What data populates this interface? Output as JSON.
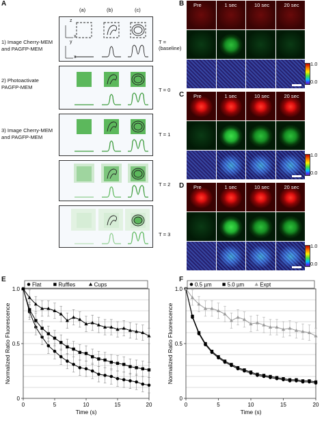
{
  "panels": {
    "A": "A",
    "B": "B",
    "C": "C",
    "D": "D",
    "E": "E",
    "F": "F"
  },
  "schematic": {
    "columns": [
      "(a)",
      "(b)",
      "(c)"
    ],
    "axes": {
      "z": "z",
      "x": "x",
      "y": "y"
    },
    "steps": [
      {
        "label": "1) Image Cherry-MEM\nand PAGFP-MEM",
        "time": "T =\n(baseline)"
      },
      {
        "label": "2) Photoactivate\nPAGFP-MEM",
        "time": "T = 0"
      },
      {
        "label": "3) Image Cherry-MEM\nand PAGFP-MEM",
        "time": "T = 1"
      },
      {
        "label": "",
        "time": "T = 2"
      },
      {
        "label": "",
        "time": "T = 3"
      }
    ]
  },
  "microscopy": {
    "time_labels": [
      "Pre",
      "1 sec",
      "10 sec",
      "20 sec"
    ],
    "colorbar": {
      "max": "1.0",
      "min": "0.0"
    }
  },
  "chart_data": [
    {
      "type": "line",
      "panel": "E",
      "xlabel": "Time (s)",
      "ylabel": "Normalized Ratio Fluorescence",
      "xlim": [
        0,
        20
      ],
      "ylim": [
        0,
        1.0
      ],
      "xticks": [
        0,
        5,
        10,
        15,
        20
      ],
      "yticks": [
        0,
        0.5,
        1.0
      ],
      "ytick_labels": [
        "0",
        "0.5",
        "1.0"
      ],
      "grid": true,
      "legend": "top",
      "x": [
        0,
        1,
        2,
        3,
        4,
        5,
        6,
        7,
        8,
        9,
        10,
        11,
        12,
        13,
        14,
        15,
        16,
        17,
        18,
        19,
        20
      ],
      "series": [
        {
          "name": "Flat",
          "marker": "circle",
          "values": [
            1.0,
            0.79,
            0.65,
            0.56,
            0.48,
            0.43,
            0.38,
            0.34,
            0.31,
            0.28,
            0.27,
            0.25,
            0.22,
            0.21,
            0.2,
            0.18,
            0.17,
            0.16,
            0.15,
            0.13,
            0.12
          ]
        },
        {
          "name": "Ruffles",
          "marker": "square",
          "values": [
            1.0,
            0.81,
            0.71,
            0.64,
            0.59,
            0.55,
            0.51,
            0.47,
            0.45,
            0.42,
            0.41,
            0.38,
            0.36,
            0.35,
            0.33,
            0.32,
            0.31,
            0.29,
            0.28,
            0.27,
            0.26
          ]
        },
        {
          "name": "Cups",
          "marker": "triangle",
          "values": [
            1.0,
            0.92,
            0.86,
            0.82,
            0.82,
            0.8,
            0.77,
            0.71,
            0.74,
            0.72,
            0.68,
            0.69,
            0.67,
            0.65,
            0.65,
            0.63,
            0.64,
            0.62,
            0.61,
            0.6,
            0.57
          ]
        }
      ]
    },
    {
      "type": "line",
      "panel": "F",
      "xlabel": "Time (s)",
      "ylabel": "Normalized Ratio Fluorescence",
      "xlim": [
        0,
        20
      ],
      "ylim": [
        0,
        1.0
      ],
      "xticks": [
        0,
        5,
        10,
        15,
        20
      ],
      "yticks": [
        0,
        0.5,
        1.0
      ],
      "ytick_labels": [
        "0",
        "0.5",
        "1.0"
      ],
      "grid": true,
      "legend": "top",
      "x": [
        0,
        1,
        2,
        3,
        4,
        5,
        6,
        7,
        8,
        9,
        10,
        11,
        12,
        13,
        14,
        15,
        16,
        17,
        18,
        19,
        20
      ],
      "series": [
        {
          "name": "0.5 µm",
          "marker": "circle",
          "values": [
            1.0,
            0.74,
            0.59,
            0.49,
            0.42,
            0.37,
            0.33,
            0.3,
            0.27,
            0.25,
            0.23,
            0.21,
            0.2,
            0.19,
            0.18,
            0.17,
            0.16,
            0.16,
            0.15,
            0.15,
            0.14
          ]
        },
        {
          "name": "5.0 µm",
          "marker": "square",
          "values": [
            1.0,
            0.75,
            0.6,
            0.5,
            0.43,
            0.38,
            0.34,
            0.31,
            0.28,
            0.26,
            0.24,
            0.22,
            0.21,
            0.2,
            0.19,
            0.18,
            0.17,
            0.17,
            0.16,
            0.16,
            0.15
          ]
        },
        {
          "name": "Expt",
          "marker": "triangle",
          "values": [
            1.0,
            0.92,
            0.86,
            0.82,
            0.82,
            0.8,
            0.77,
            0.71,
            0.74,
            0.72,
            0.68,
            0.69,
            0.67,
            0.65,
            0.65,
            0.63,
            0.64,
            0.62,
            0.61,
            0.6,
            0.57
          ]
        }
      ]
    }
  ]
}
